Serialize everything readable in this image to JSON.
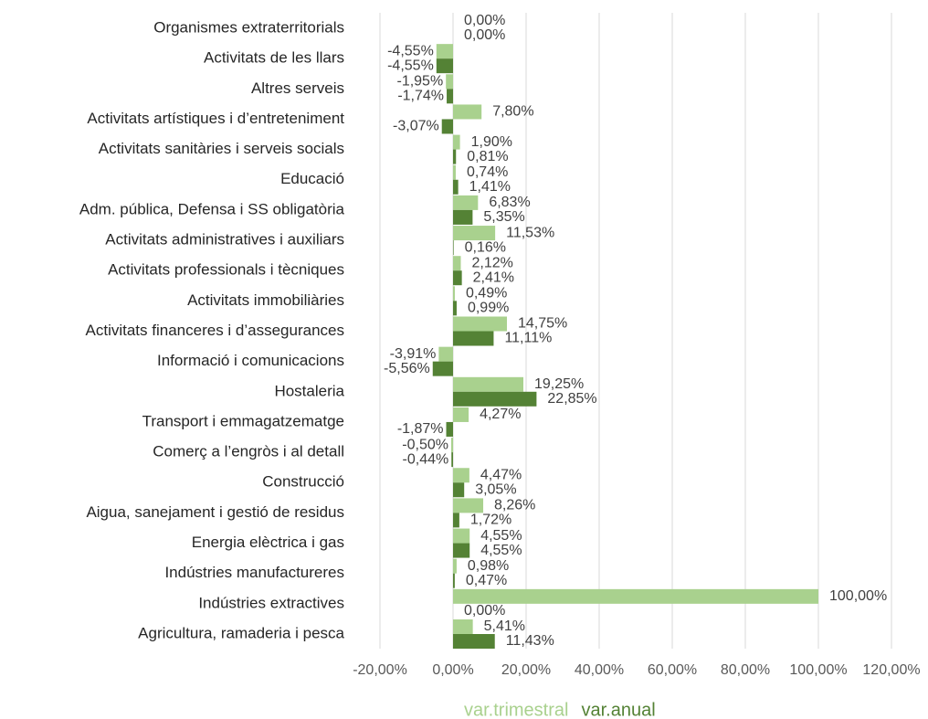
{
  "chart_data": {
    "type": "bar",
    "orientation": "horizontal",
    "categories": [
      "Organismes extraterritorials",
      "Activitats de les llars",
      "Altres serveis",
      "Activitats artístiques i d’entreteniment",
      "Activitats sanitàries i serveis socials",
      "Educació",
      "Adm. pública, Defensa i SS obligatòria",
      "Activitats administratives i auxiliars",
      "Activitats professionals i tècniques",
      "Activitats immobiliàries",
      "Activitats financeres i d’assegurances",
      "Informació i comunicacions",
      "Hostaleria",
      "Transport i emmagatzematge",
      "Comerç a l’engròs i al detall",
      "Construcció",
      "Aigua, sanejament i gestió de residus",
      "Energia elèctrica i gas",
      "Indústries manufactureres",
      "Indústries extractives",
      "Agricultura, ramaderia i pesca"
    ],
    "series": [
      {
        "name": "var.trimestral",
        "color": "#a9d18e",
        "values": [
          0,
          -4.55,
          -1.95,
          7.8,
          1.9,
          0.74,
          6.83,
          11.53,
          2.12,
          0.49,
          14.75,
          -3.91,
          19.25,
          4.27,
          -0.5,
          4.47,
          8.26,
          4.55,
          0.98,
          100,
          5.41
        ],
        "value_labels": [
          "0,00%",
          "-4,55%",
          "-1,95%",
          "7,80%",
          "1,90%",
          "0,74%",
          "6,83%",
          "11,53%",
          "2,12%",
          "0,49%",
          "14,75%",
          "-3,91%",
          "19,25%",
          "4,27%",
          "-0,50%",
          "4,47%",
          "8,26%",
          "4,55%",
          "0,98%",
          "100,00%",
          "5,41%"
        ]
      },
      {
        "name": "var.anual",
        "color": "#548235",
        "values": [
          0,
          -4.55,
          -1.74,
          -3.07,
          0.81,
          1.41,
          5.35,
          0.16,
          2.41,
          0.99,
          11.11,
          -5.56,
          22.85,
          -1.87,
          -0.44,
          3.05,
          1.72,
          4.55,
          0.47,
          0,
          11.43
        ],
        "value_labels": [
          "0,00%",
          "-4,55%",
          "-1,74%",
          "-3,07%",
          "0,81%",
          "1,41%",
          "5,35%",
          "0,16%",
          "2,41%",
          "0,99%",
          "11,11%",
          "-5,56%",
          "22,85%",
          "-1,87%",
          "-0,44%",
          "3,05%",
          "1,72%",
          "4,55%",
          "0,47%",
          "0,00%",
          "11,43%"
        ]
      }
    ],
    "xlim": [
      -20,
      120
    ],
    "xticks": [
      {
        "value": -20,
        "label": "-20,00%"
      },
      {
        "value": 0,
        "label": "0,00%"
      },
      {
        "value": 20,
        "label": "20,00%"
      },
      {
        "value": 40,
        "label": "40,00%"
      },
      {
        "value": 60,
        "label": "60,00%"
      },
      {
        "value": 80,
        "label": "80,00%"
      },
      {
        "value": 100,
        "label": "100,00%"
      },
      {
        "value": 120,
        "label": "120,00%"
      }
    ],
    "grid": true,
    "legend": "bottom"
  }
}
